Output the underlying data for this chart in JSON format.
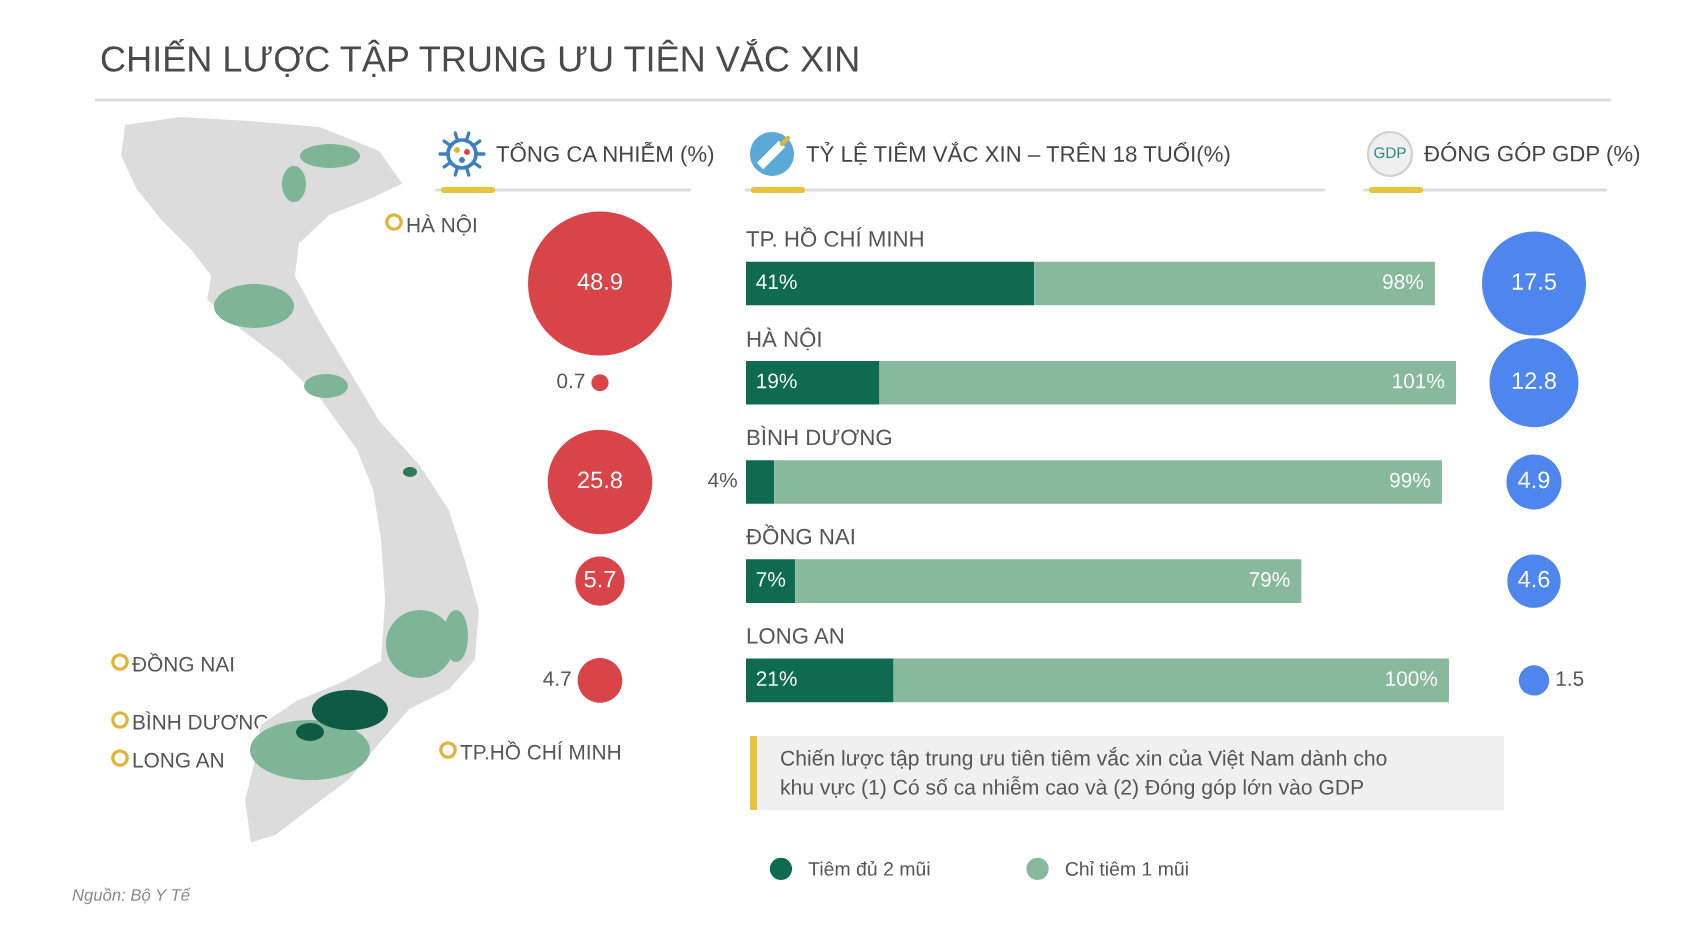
{
  "chart_data": [
    {
      "type": "other",
      "title": "CHIẾN LƯỢC TẬP TRUNG ƯU TIÊN VẮC XIN",
      "annotations": [
        "HÀ NỘI",
        "ĐỒNG NAI",
        "BÌNH DƯƠNG",
        "LONG AN",
        "TP.HỒ CHÍ MINH",
        "Nguồn: Bộ Y Tế"
      ]
    },
    {
      "type": "other",
      "title": "TỔNG CA NHIỄM (%)",
      "values": [
        48.9,
        0.7,
        25.8,
        5.7,
        4.7
      ],
      "color": "#d94448",
      "data_labels": true
    },
    {
      "type": "bar",
      "title": "TỶ LỆ TIÊM VẮC XIN – TRÊN 18 TUỔI(%)",
      "orientation": "horizontal",
      "stacked": true,
      "categories": [
        "TP. HỒ CHÍ MINH",
        "HÀ NỘI",
        "BÌNH DƯƠNG",
        "ĐỒNG NAI",
        "LONG AN"
      ],
      "series": [
        {
          "name": "Tiêm đủ 2 mũi",
          "color": "#0f6b50",
          "values": [
            41,
            19,
            4,
            7,
            21
          ],
          "value_labels": [
            "41%",
            "19%",
            "4%",
            "7%",
            "21%"
          ]
        },
        {
          "name": "Chỉ tiêm 1 mũi",
          "color": "#88b99c",
          "values": [
            57,
            82,
            95,
            72,
            79
          ]
        }
      ],
      "totals": [
        "98%",
        "101%",
        "99%",
        "79%",
        "100%"
      ],
      "legend": "bottom",
      "annotations": [
        "Chiến lược tập trung ưu tiên tiêm vắc xin của Việt Nam dành cho\nkhu vực (1) Có số ca nhiễm cao và (2) Đóng góp lớn vào GDP"
      ]
    },
    {
      "type": "other",
      "title": "ĐÓNG GÓP GDP (%)",
      "values": [
        17.5,
        12.8,
        4.9,
        4.6,
        1.5
      ],
      "color": "#4e86ee",
      "data_labels": true,
      "annotations": [
        "GDP"
      ]
    }
  ]
}
